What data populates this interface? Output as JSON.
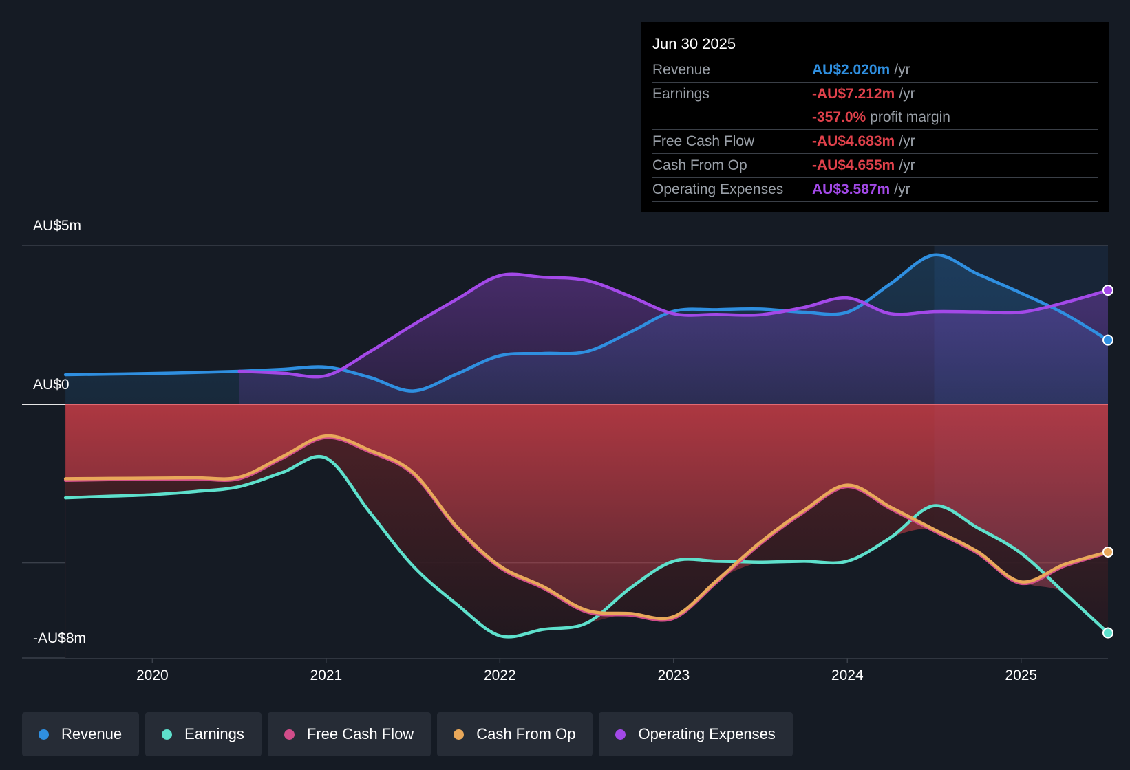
{
  "colors": {
    "background": "#151b24",
    "revenue": "#2f8fe0",
    "earnings": "#5ee0cc",
    "fcf": "#d14d8a",
    "cfo": "#e8a85a",
    "opex": "#a349e8",
    "neg": "#e0414b",
    "muted": "#9aa0a8"
  },
  "tooltip": {
    "date": "Jun 30 2025",
    "rows": [
      {
        "label": "Revenue",
        "value": "AU$2.020m",
        "unit": "/yr",
        "color": "#2f8fe0"
      },
      {
        "label": "Earnings",
        "value": "-AU$7.212m",
        "unit": "/yr",
        "color": "#e0414b"
      },
      {
        "label": "",
        "value": "-357.0%",
        "unit": "profit margin",
        "color": "#e0414b"
      },
      {
        "label": "Free Cash Flow",
        "value": "-AU$4.683m",
        "unit": "/yr",
        "color": "#e0414b"
      },
      {
        "label": "Cash From Op",
        "value": "-AU$4.655m",
        "unit": "/yr",
        "color": "#e0414b"
      },
      {
        "label": "Operating Expenses",
        "value": "AU$3.587m",
        "unit": "/yr",
        "color": "#a349e8"
      }
    ]
  },
  "legend": [
    {
      "label": "Revenue",
      "color": "#2f8fe0"
    },
    {
      "label": "Earnings",
      "color": "#5ee0cc"
    },
    {
      "label": "Free Cash Flow",
      "color": "#d14d8a"
    },
    {
      "label": "Cash From Op",
      "color": "#e8a85a"
    },
    {
      "label": "Operating Expenses",
      "color": "#a349e8"
    }
  ],
  "chart_data": {
    "type": "line",
    "title": "",
    "xlabel": "",
    "ylabel": "",
    "units": "AU$ m",
    "ylim": [
      -8,
      5
    ],
    "xlim": [
      2019.25,
      2025.5
    ],
    "y_tick_labels": [
      "AU$5m",
      "AU$0",
      "-AU$8m"
    ],
    "y_tick_values": [
      5,
      0,
      -8
    ],
    "gridlines": [
      5,
      0,
      -5
    ],
    "x_tick_labels": [
      "2020",
      "2021",
      "2022",
      "2023",
      "2024",
      "2025"
    ],
    "x_tick_values": [
      2020,
      2021,
      2022,
      2023,
      2024,
      2025
    ],
    "forecast_start": 2024.5,
    "series": [
      {
        "name": "Revenue",
        "color": "#2f8fe0",
        "x": [
          2019.5,
          2019.75,
          2020.0,
          2020.25,
          2020.5,
          2020.75,
          2021.0,
          2021.25,
          2021.5,
          2021.75,
          2022.0,
          2022.25,
          2022.5,
          2022.75,
          2023.0,
          2023.25,
          2023.5,
          2023.75,
          2024.0,
          2024.25,
          2024.5,
          2024.75,
          2025.0,
          2025.25,
          2025.5
        ],
        "values": [
          0.93,
          0.95,
          0.97,
          1.0,
          1.04,
          1.1,
          1.17,
          0.85,
          0.42,
          0.95,
          1.53,
          1.6,
          1.66,
          2.27,
          2.93,
          2.98,
          3.0,
          2.9,
          2.9,
          3.8,
          4.7,
          4.1,
          3.5,
          2.85,
          2.02
        ]
      },
      {
        "name": "Earnings",
        "color": "#5ee0cc",
        "x": [
          2019.5,
          2019.75,
          2020.0,
          2020.25,
          2020.5,
          2020.75,
          2021.0,
          2021.25,
          2021.5,
          2021.75,
          2022.0,
          2022.25,
          2022.5,
          2022.75,
          2023.0,
          2023.25,
          2023.5,
          2023.75,
          2024.0,
          2024.25,
          2024.5,
          2024.75,
          2025.0,
          2025.25,
          2025.5
        ],
        "values": [
          -2.95,
          -2.9,
          -2.85,
          -2.75,
          -2.6,
          -2.15,
          -1.7,
          -3.4,
          -5.1,
          -6.3,
          -7.3,
          -7.1,
          -6.9,
          -5.8,
          -4.95,
          -4.95,
          -4.98,
          -4.95,
          -4.95,
          -4.2,
          -3.2,
          -3.9,
          -4.7,
          -5.95,
          -7.21
        ]
      },
      {
        "name": "Free Cash Flow",
        "color": "#d14d8a",
        "x": [
          2019.5,
          2019.75,
          2020.0,
          2020.25,
          2020.5,
          2020.75,
          2021.0,
          2021.25,
          2021.5,
          2021.75,
          2022.0,
          2022.25,
          2022.5,
          2022.75,
          2023.0,
          2023.25,
          2023.5,
          2023.75,
          2024.0,
          2024.25,
          2024.5,
          2024.75,
          2025.0,
          2025.25,
          2025.5
        ],
        "values": [
          -2.4,
          -2.38,
          -2.37,
          -2.36,
          -2.35,
          -1.7,
          -1.05,
          -1.5,
          -2.2,
          -3.9,
          -5.15,
          -5.8,
          -6.55,
          -6.65,
          -6.75,
          -5.6,
          -4.4,
          -3.4,
          -2.6,
          -3.3,
          -4.0,
          -4.7,
          -5.65,
          -5.1,
          -4.68
        ]
      },
      {
        "name": "Cash From Op",
        "color": "#e8a85a",
        "x": [
          2019.5,
          2019.75,
          2020.0,
          2020.25,
          2020.5,
          2020.75,
          2021.0,
          2021.25,
          2021.5,
          2021.75,
          2022.0,
          2022.25,
          2022.5,
          2022.75,
          2023.0,
          2023.25,
          2023.5,
          2023.75,
          2024.0,
          2024.25,
          2024.5,
          2024.75,
          2025.0,
          2025.25,
          2025.5
        ],
        "values": [
          -2.35,
          -2.34,
          -2.33,
          -2.32,
          -2.3,
          -1.65,
          -1.0,
          -1.45,
          -2.15,
          -3.85,
          -5.1,
          -5.75,
          -6.5,
          -6.6,
          -6.7,
          -5.55,
          -4.35,
          -3.35,
          -2.55,
          -3.25,
          -3.95,
          -4.65,
          -5.6,
          -5.05,
          -4.66
        ]
      },
      {
        "name": "Operating Expenses",
        "color": "#a349e8",
        "x": [
          2020.5,
          2020.75,
          2021.0,
          2021.25,
          2021.5,
          2021.75,
          2022.0,
          2022.25,
          2022.5,
          2022.75,
          2023.0,
          2023.25,
          2023.5,
          2023.75,
          2024.0,
          2024.25,
          2024.5,
          2024.75,
          2025.0,
          2025.25,
          2025.5
        ],
        "values": [
          1.04,
          0.98,
          0.9,
          1.65,
          2.5,
          3.3,
          4.05,
          4.0,
          3.9,
          3.4,
          2.85,
          2.83,
          2.82,
          3.05,
          3.35,
          2.85,
          2.92,
          2.91,
          2.9,
          3.2,
          3.59
        ]
      }
    ]
  }
}
